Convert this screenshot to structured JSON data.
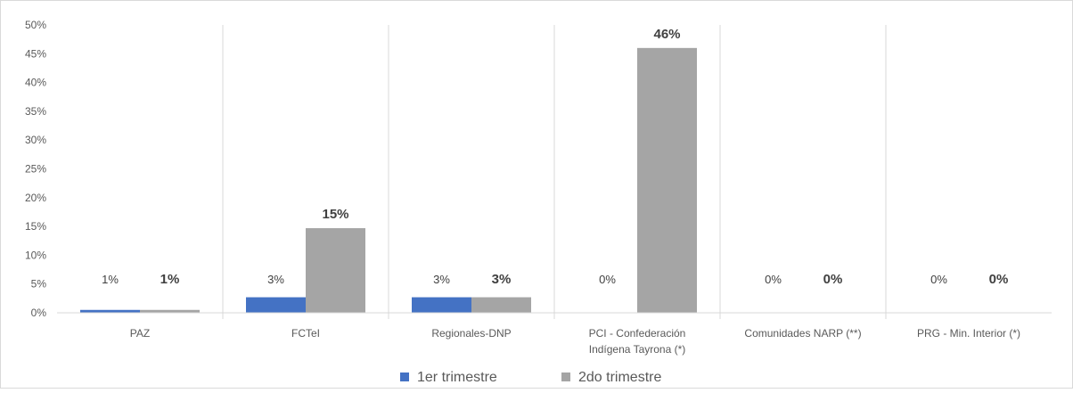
{
  "chart_data": {
    "type": "bar",
    "title": "",
    "xlabel": "",
    "ylabel": "",
    "categories": [
      [
        "PAZ"
      ],
      [
        "FCTeI"
      ],
      [
        "Regionales-DNP"
      ],
      [
        "PCI - Confederación",
        "Indígena Tayrona (*)"
      ],
      [
        "Comunidades NARP (**)"
      ],
      [
        "PRG - Min. Interior (*)"
      ]
    ],
    "series": [
      {
        "name": "1er trimestre",
        "color": "#4472C4",
        "values": [
          0.5,
          2.7,
          2.7,
          0,
          0,
          0
        ],
        "labels": [
          "1%",
          "3%",
          "3%",
          "0%",
          "0%",
          "0%"
        ]
      },
      {
        "name": "2do trimestre",
        "color": "#A5A5A5",
        "values": [
          0.5,
          14.7,
          2.7,
          46,
          0,
          0
        ],
        "labels": [
          "1%",
          "15%",
          "3%",
          "46%",
          "0%",
          "0%"
        ]
      }
    ],
    "ylim": [
      0,
      50
    ],
    "yticks": [
      0,
      5,
      10,
      15,
      20,
      25,
      30,
      35,
      40,
      45,
      50
    ],
    "ytick_suffix": "%",
    "grid": "vertical category separators",
    "legend": "bottom"
  }
}
